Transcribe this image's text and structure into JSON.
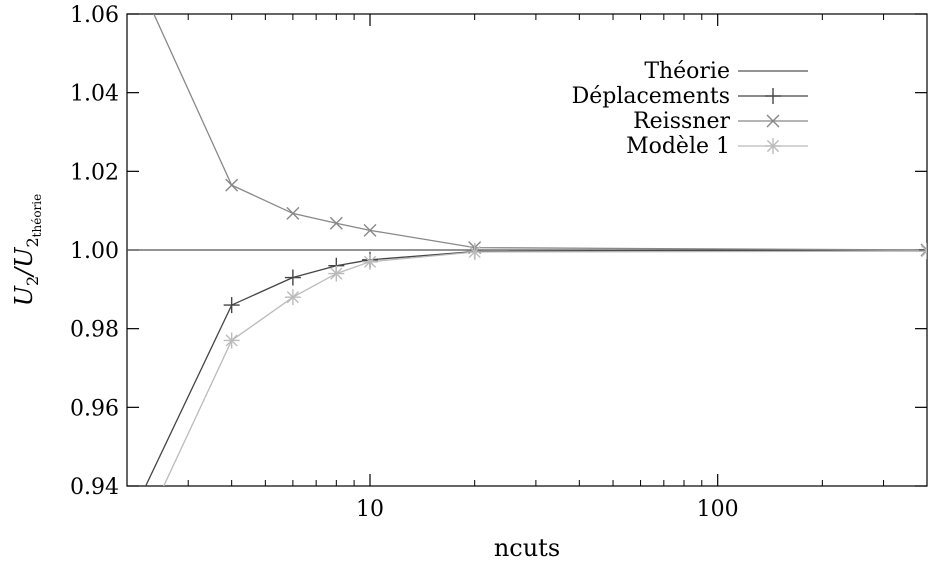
{
  "chart_data": {
    "type": "line",
    "title": "",
    "xlabel": "ncuts",
    "ylabel": {
      "main": "U",
      "sub1": "2",
      "mid": "/U",
      "sub2": "2",
      "sub3": "théorie"
    },
    "x_scale": "log",
    "xlim": [
      2,
      400
    ],
    "ylim": [
      0.94,
      1.06
    ],
    "grid": false,
    "legend_position": "top-right",
    "x_ticks": [
      {
        "value": 10,
        "label": "10"
      },
      {
        "value": 100,
        "label": "100"
      }
    ],
    "x_minor_ticks": [
      2,
      3,
      4,
      5,
      6,
      7,
      8,
      9,
      20,
      30,
      40,
      50,
      60,
      70,
      80,
      90,
      200,
      300,
      400
    ],
    "y_ticks": [
      {
        "value": 0.94,
        "label": "0.94"
      },
      {
        "value": 0.96,
        "label": "0.96"
      },
      {
        "value": 0.98,
        "label": "0.98"
      },
      {
        "value": 1.0,
        "label": "1.00"
      },
      {
        "value": 1.02,
        "label": "1.02"
      },
      {
        "value": 1.04,
        "label": "1.04"
      },
      {
        "value": 1.06,
        "label": "1.06"
      }
    ],
    "series": [
      {
        "name": "Théorie",
        "marker": "none",
        "color": "#555555",
        "x": [
          2,
          400
        ],
        "y": [
          1.0,
          1.0
        ]
      },
      {
        "name": "Déplacements",
        "marker": "plus",
        "color": "#444444",
        "x": [
          2,
          4,
          6,
          8,
          10,
          20,
          400
        ],
        "y": [
          0.93,
          0.986,
          0.993,
          0.996,
          0.9975,
          0.9996,
          1.0
        ]
      },
      {
        "name": "Reissner",
        "marker": "cross",
        "color": "#888888",
        "x": [
          2,
          4,
          6,
          8,
          10,
          20,
          400
        ],
        "y": [
          1.075,
          1.0165,
          1.0093,
          1.0068,
          1.005,
          1.0006,
          1.0
        ]
      },
      {
        "name": "Modèle 1",
        "marker": "star",
        "color": "#bbbbbb",
        "x": [
          2,
          4,
          6,
          8,
          10,
          20,
          400
        ],
        "y": [
          0.92,
          0.977,
          0.988,
          0.994,
          0.997,
          0.9995,
          0.9997
        ]
      }
    ]
  }
}
